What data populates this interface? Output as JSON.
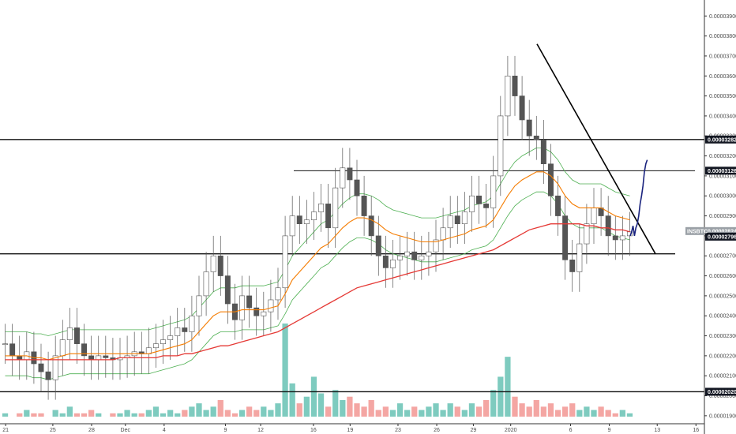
{
  "chart_data": {
    "type": "candlestick",
    "symbol": "INSBTC",
    "ylim": [
      1.86e-05,
      3.98e-05
    ],
    "y_ticks": [
      "0.00003900",
      "0.00003800",
      "0.00003700",
      "0.00003600",
      "0.00003500",
      "0.00003400",
      "0.00003300",
      "0.00003200",
      "0.00003100",
      "0.00003000",
      "0.00002900",
      "0.00002800",
      "0.00002700",
      "0.00002600",
      "0.00002500",
      "0.00002400",
      "0.00002300",
      "0.00002200",
      "0.00002100",
      "0.00002000",
      "0.00001900"
    ],
    "x_ticks": [
      "21",
      "25",
      "28",
      "Dec",
      "4",
      "9",
      "12",
      "16",
      "19",
      "23",
      "26",
      "29",
      "2020",
      "6",
      "9",
      "13",
      "16"
    ],
    "price_badges": [
      {
        "label": "0.00003282",
        "value": 3.282e-05,
        "style": "dark"
      },
      {
        "label": "0.00003126",
        "value": 3.126e-05,
        "style": "dark"
      },
      {
        "label": "0.00002824",
        "value": 2.824e-05,
        "style": "gray"
      },
      {
        "label": "02:14:53",
        "value": 2.8e-05,
        "style": "gray"
      },
      {
        "label": "0.00002796",
        "value": 2.796e-05,
        "style": "dark"
      },
      {
        "label": "0.00002020",
        "value": 2.02e-05,
        "style": "dark"
      }
    ],
    "horizontal_levels": [
      3.282e-05,
      3.126e-05,
      2.71e-05,
      2.02e-05
    ],
    "colors": {
      "up": "#26a69a",
      "down": "#ef5350",
      "candle": "#555555",
      "ema_fast": "#f57c00",
      "ema_slow": "#e53935",
      "bb": "#4caf50",
      "projection": "#1a237e",
      "volume_up": "#7ecbbf",
      "volume_down": "#f4a6a3"
    }
  },
  "close_series": [
    2.26e-05,
    2.2e-05,
    2.18e-05,
    2.22e-05,
    2.16e-05,
    2.12e-05,
    2.08e-05,
    2.2e-05,
    2.28e-05,
    2.34e-05,
    2.26e-05,
    2.2e-05,
    2.18e-05,
    2.2e-05,
    2.19e-05,
    2.18e-05,
    2.19e-05,
    2.2e-05,
    2.22e-05,
    2.21e-05,
    2.24e-05,
    2.26e-05,
    2.28e-05,
    2.3e-05,
    2.34e-05,
    2.32e-05,
    2.4e-05,
    2.5e-05,
    2.62e-05,
    2.7e-05,
    2.6e-05,
    2.46e-05,
    2.38e-05,
    2.5e-05,
    2.44e-05,
    2.4e-05,
    2.42e-05,
    2.48e-05,
    2.54e-05,
    2.8e-05,
    2.9e-05,
    2.86e-05,
    2.88e-05,
    2.92e-05,
    2.96e-05,
    2.84e-05,
    3.04e-05,
    3.14e-05,
    3.08e-05,
    3e-05,
    2.9e-05,
    2.8e-05,
    2.7e-05,
    2.64e-05,
    2.68e-05,
    2.7e-05,
    2.72e-05,
    2.68e-05,
    2.7e-05,
    2.72e-05,
    2.78e-05,
    2.84e-05,
    2.9e-05,
    2.86e-05,
    2.92e-05,
    3e-05,
    2.96e-05,
    2.94e-05,
    3.1e-05,
    3.4e-05,
    3.6e-05,
    3.5e-05,
    3.38e-05,
    3.3e-05,
    3.28e-05,
    3.16e-05,
    3e-05,
    2.9e-05,
    2.68e-05,
    2.62e-05,
    2.76e-05,
    2.86e-05,
    2.94e-05,
    2.9e-05,
    2.8e-05,
    2.78e-05,
    2.8e-05,
    2.82e-05
  ],
  "volume_series": [
    1,
    0,
    1,
    2,
    1,
    1,
    0,
    2,
    1,
    3,
    1,
    1,
    2,
    1,
    0,
    1,
    1,
    2,
    1,
    1,
    2,
    3,
    1,
    2,
    1,
    2,
    3,
    4,
    2,
    3,
    5,
    2,
    1,
    2,
    3,
    2,
    3,
    2,
    4,
    28,
    10,
    4,
    6,
    12,
    7,
    3,
    8,
    5,
    6,
    4,
    3,
    5,
    2,
    3,
    2,
    4,
    2,
    3,
    2,
    3,
    4,
    2,
    4,
    3,
    2,
    4,
    3,
    5,
    8,
    12,
    18,
    6,
    4,
    3,
    5,
    3,
    4,
    2,
    3,
    4,
    2,
    3,
    2,
    3,
    2,
    1,
    2,
    1
  ],
  "ema_fast_series": [
    2.2e-05,
    2.2e-05,
    2.2e-05,
    2.2e-05,
    2.19e-05,
    2.19e-05,
    2.18e-05,
    2.19e-05,
    2.2e-05,
    2.21e-05,
    2.21e-05,
    2.21e-05,
    2.21e-05,
    2.21e-05,
    2.21e-05,
    2.21e-05,
    2.21e-05,
    2.21e-05,
    2.21e-05,
    2.21e-05,
    2.21e-05,
    2.22e-05,
    2.23e-05,
    2.24e-05,
    2.25e-05,
    2.26e-05,
    2.28e-05,
    2.32e-05,
    2.36e-05,
    2.4e-05,
    2.42e-05,
    2.42e-05,
    2.42e-05,
    2.43e-05,
    2.43e-05,
    2.43e-05,
    2.43e-05,
    2.44e-05,
    2.45e-05,
    2.51e-05,
    2.58e-05,
    2.62e-05,
    2.66e-05,
    2.7e-05,
    2.74e-05,
    2.76e-05,
    2.8e-05,
    2.84e-05,
    2.87e-05,
    2.89e-05,
    2.89e-05,
    2.88e-05,
    2.86e-05,
    2.83e-05,
    2.81e-05,
    2.8e-05,
    2.79e-05,
    2.78e-05,
    2.77e-05,
    2.77e-05,
    2.77e-05,
    2.78e-05,
    2.79e-05,
    2.8e-05,
    2.81e-05,
    2.83e-05,
    2.84e-05,
    2.85e-05,
    2.88e-05,
    2.94e-05,
    3e-05,
    3.05e-05,
    3.08e-05,
    3.1e-05,
    3.12e-05,
    3.12e-05,
    3.1e-05,
    3.06e-05,
    3e-05,
    2.96e-05,
    2.94e-05,
    2.94e-05,
    2.94e-05,
    2.94e-05,
    2.92e-05,
    2.9e-05,
    2.89e-05,
    2.88e-05
  ],
  "ema_slow_series": [
    2.18e-05,
    2.18e-05,
    2.18e-05,
    2.18e-05,
    2.18e-05,
    2.18e-05,
    2.18e-05,
    2.18e-05,
    2.18e-05,
    2.18e-05,
    2.18e-05,
    2.18e-05,
    2.18e-05,
    2.18e-05,
    2.18e-05,
    2.18e-05,
    2.19e-05,
    2.19e-05,
    2.19e-05,
    2.19e-05,
    2.19e-05,
    2.19e-05,
    2.2e-05,
    2.2e-05,
    2.2e-05,
    2.21e-05,
    2.21e-05,
    2.22e-05,
    2.23e-05,
    2.24e-05,
    2.25e-05,
    2.25e-05,
    2.26e-05,
    2.27e-05,
    2.28e-05,
    2.29e-05,
    2.3e-05,
    2.31e-05,
    2.32e-05,
    2.34e-05,
    2.36e-05,
    2.38e-05,
    2.4e-05,
    2.42e-05,
    2.44e-05,
    2.46e-05,
    2.48e-05,
    2.5e-05,
    2.52e-05,
    2.54e-05,
    2.55e-05,
    2.56e-05,
    2.57e-05,
    2.58e-05,
    2.59e-05,
    2.6e-05,
    2.61e-05,
    2.62e-05,
    2.63e-05,
    2.64e-05,
    2.65e-05,
    2.66e-05,
    2.67e-05,
    2.68e-05,
    2.69e-05,
    2.7e-05,
    2.71e-05,
    2.72e-05,
    2.73e-05,
    2.75e-05,
    2.77e-05,
    2.79e-05,
    2.81e-05,
    2.83e-05,
    2.84e-05,
    2.85e-05,
    2.86e-05,
    2.86e-05,
    2.86e-05,
    2.86e-05,
    2.86e-05,
    2.85e-05,
    2.85e-05,
    2.84e-05,
    2.84e-05,
    2.83e-05,
    2.83e-05,
    2.82e-05
  ],
  "projection_series": [
    2.8e-05,
    2.82e-05,
    2.85e-05,
    2.8e-05,
    2.84e-05,
    2.86e-05,
    2.9e-05,
    2.96e-05,
    3e-05,
    3.05e-05,
    3.12e-05,
    3.16e-05,
    3.18e-05
  ]
}
